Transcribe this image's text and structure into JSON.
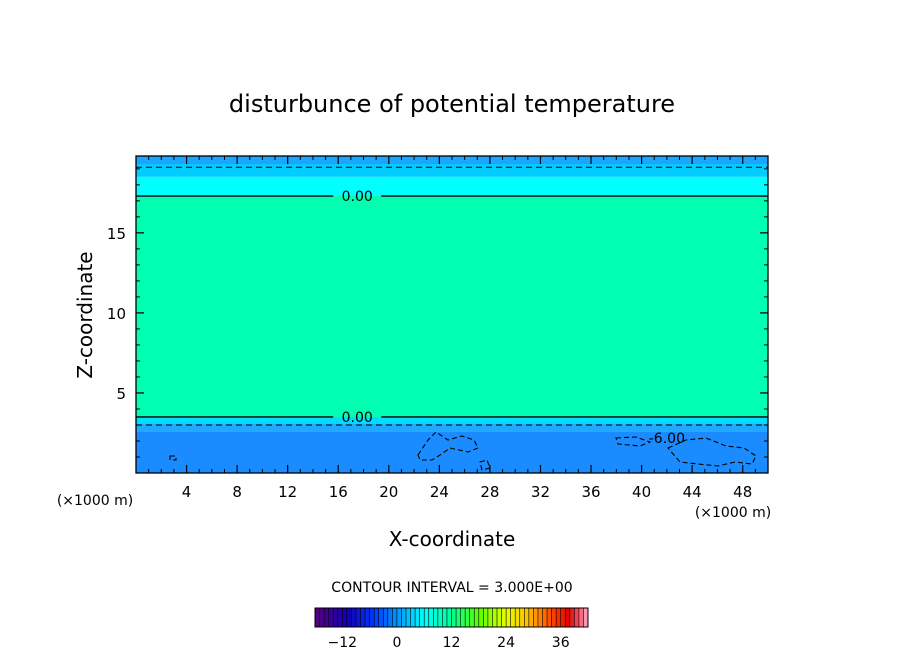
{
  "chart_data": {
    "type": "heatmap",
    "title": "disturbunce of potential temperature",
    "xlabel": "X-coordinate",
    "ylabel": "Z-coordinate",
    "x_unit_left": "(×1000 m)",
    "x_unit_right": "(×1000 m)",
    "xlim": [
      0,
      50
    ],
    "ylim": [
      0,
      19.8
    ],
    "x_ticks": [
      4,
      8,
      12,
      16,
      20,
      24,
      28,
      32,
      36,
      40,
      44,
      48
    ],
    "x_tick_labels": [
      "4",
      "8",
      "12",
      "16",
      "20",
      "24",
      "28",
      "32",
      "36",
      "40",
      "44",
      "48"
    ],
    "y_ticks": [
      5,
      10,
      15
    ],
    "y_tick_labels": [
      "5",
      "10",
      "15"
    ],
    "layers": [
      {
        "z0": 0.0,
        "z1": 2.6,
        "color": "#1a8cff",
        "value": -4.5
      },
      {
        "z0": 2.6,
        "z1": 3.1,
        "color": "#20aaff",
        "value": -2.0
      },
      {
        "z0": 3.1,
        "z1": 3.5,
        "color": "#00ddff",
        "value": -1.0
      },
      {
        "z0": 3.5,
        "z1": 17.3,
        "color": "#00ffb0",
        "value": 1.5
      },
      {
        "z0": 17.3,
        "z1": 18.5,
        "color": "#00ffff",
        "value": -0.5
      },
      {
        "z0": 18.5,
        "z1": 19.3,
        "color": "#00ccff",
        "value": -1.5
      },
      {
        "z0": 19.3,
        "z1": 19.8,
        "color": "#1aa6ff",
        "value": -3.0
      }
    ],
    "contours": [
      {
        "z": 17.3,
        "style": "solid",
        "label": "0.00",
        "label_x": 17.5
      },
      {
        "z": 3.5,
        "style": "solid",
        "label": "0.00",
        "label_x": 17.5
      },
      {
        "z": 3.0,
        "style": "dashed",
        "label": "",
        "label_x": null
      },
      {
        "z": 19.1,
        "style": "dashed",
        "label": "",
        "label_x": null
      }
    ],
    "contour_labels": [
      {
        "text": "-6.00",
        "x": 42.0,
        "z": 2.2
      }
    ],
    "contour_interval_label": "CONTOUR INTERVAL = 3.000E+00",
    "colorbar": {
      "range": [
        -18,
        42
      ],
      "tick_values": [
        -12,
        0,
        12,
        24,
        36
      ],
      "tick_labels": [
        "−12",
        "0",
        "12",
        "24",
        "36"
      ]
    }
  }
}
